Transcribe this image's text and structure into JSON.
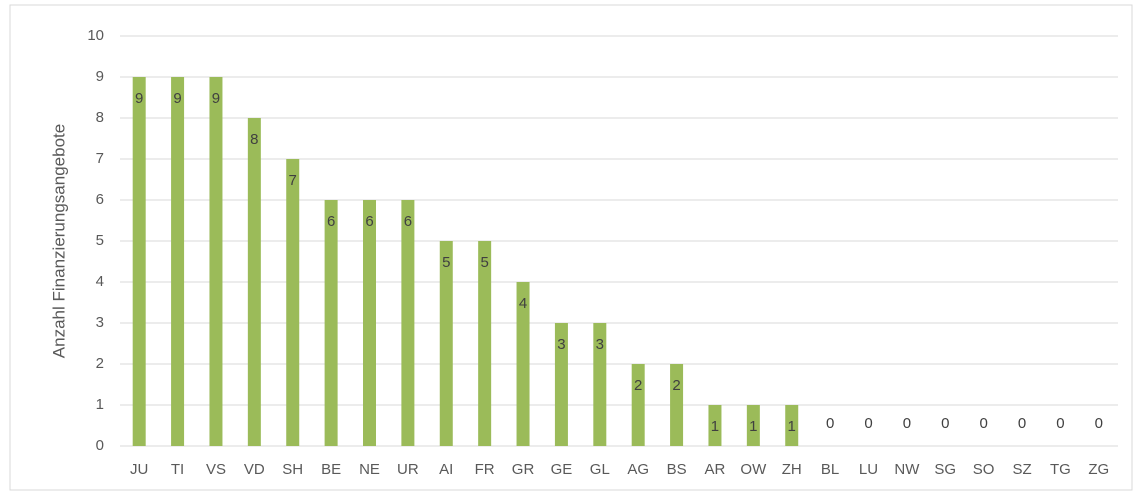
{
  "chart_data": {
    "type": "bar",
    "y_axis_label": "Anzahl Finanzierungsangebote",
    "categories": [
      "JU",
      "TI",
      "VS",
      "VD",
      "SH",
      "BE",
      "NE",
      "UR",
      "AI",
      "FR",
      "GR",
      "GE",
      "GL",
      "AG",
      "BS",
      "AR",
      "OW",
      "ZH",
      "BL",
      "LU",
      "NW",
      "SG",
      "SO",
      "SZ",
      "TG",
      "ZG"
    ],
    "values": [
      9,
      9,
      9,
      8,
      7,
      6,
      6,
      6,
      5,
      5,
      4,
      3,
      3,
      2,
      2,
      1,
      1,
      1,
      0,
      0,
      0,
      0,
      0,
      0,
      0,
      0
    ],
    "color": "#9bbb59",
    "ylim": [
      0,
      10
    ],
    "yticks": [
      0,
      1,
      2,
      3,
      4,
      5,
      6,
      7,
      8,
      9,
      10
    ],
    "grid": true,
    "data_labels": true
  }
}
